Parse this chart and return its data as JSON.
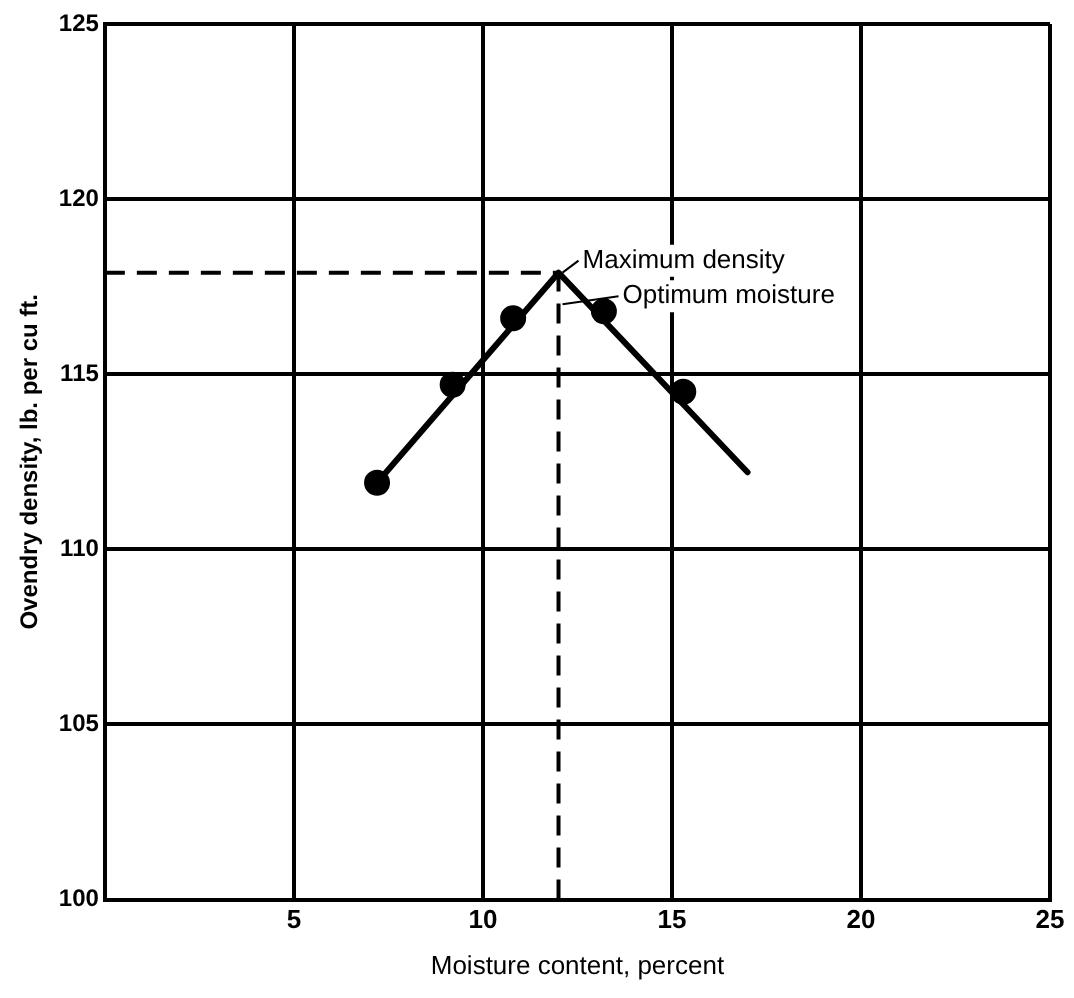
{
  "chart_data": {
    "type": "line",
    "xlabel": "Moisture content, percent",
    "ylabel": "Ovendry density, lb. per cu ft.",
    "xlim": [
      0,
      25
    ],
    "xticks": [
      {
        "value": 0,
        "label": null
      },
      5,
      10,
      15,
      20,
      25
    ],
    "ylim": [
      100,
      125
    ],
    "yticks": [
      100,
      105,
      110,
      115,
      120,
      125
    ],
    "grid": true,
    "legend": false,
    "series": [
      {
        "type": "line",
        "color": "#000000",
        "marker": "none",
        "line_style": "solid",
        "x": [
          7.2,
          12.0,
          17.0
        ],
        "values": [
          111.9,
          117.9,
          112.2
        ]
      },
      {
        "type": "scatter",
        "color": "#000000",
        "marker": "circle",
        "x": [
          7.2,
          9.2,
          10.8,
          13.2,
          15.3
        ],
        "values": [
          111.9,
          114.7,
          116.6,
          116.8,
          114.5
        ]
      }
    ],
    "ref_lines": [
      {
        "axis": "y",
        "value": 117.9,
        "line_style": "dashed",
        "color": "#000000"
      },
      {
        "axis": "x",
        "value": 12.0,
        "line_style": "dashed",
        "color": "#000000"
      }
    ],
    "annotations": [
      {
        "text": "Maximum density",
        "x": 12.0,
        "y": 117.9
      },
      {
        "text": "Optimum moisture",
        "x": 12.0,
        "y": 117
      }
    ]
  }
}
